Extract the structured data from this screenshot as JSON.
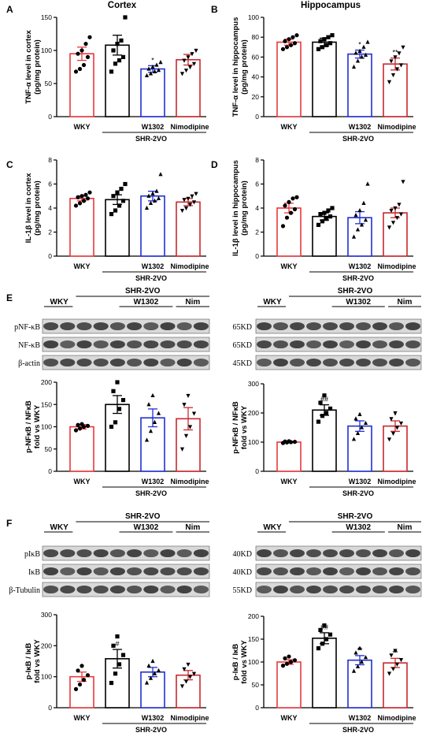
{
  "colors": {
    "wky": "#e8383d",
    "shr": "#000000",
    "w1302": "#1f2fd6",
    "nim": "#c8282d"
  },
  "panels": {
    "A": {
      "letter": "A",
      "title": "Cortex"
    },
    "B": {
      "letter": "B",
      "title": "Hippocampus"
    },
    "C": {
      "letter": "C"
    },
    "D": {
      "letter": "D"
    },
    "E": {
      "letter": "E"
    },
    "F": {
      "letter": "F"
    }
  },
  "chart_data": [
    {
      "id": "A",
      "type": "bar",
      "categories": [
        "WKY",
        "",
        "W1302",
        "Nimodipine"
      ],
      "group_label": "SHR-2VO",
      "ylabel": "TNF-α level in cortex",
      "yunit": "(pg/mg protein)",
      "ylim": [
        0,
        150
      ],
      "yticks": [
        0,
        50,
        100,
        150
      ],
      "values": [
        95,
        108,
        72,
        86
      ],
      "errors": [
        10,
        15,
        5,
        8
      ],
      "significance": [
        "",
        "",
        "*",
        ""
      ],
      "points": [
        [
          68,
          72,
          78,
          90,
          95,
          100,
          110,
          120
        ],
        [
          68,
          80,
          85,
          90,
          100,
          110,
          115,
          150
        ],
        [
          62,
          65,
          68,
          70,
          72,
          75,
          78,
          82
        ],
        [
          65,
          70,
          75,
          80,
          85,
          90,
          95,
          100
        ]
      ]
    },
    {
      "id": "B",
      "type": "bar",
      "categories": [
        "WKY",
        "",
        "W1302",
        "Nimodipine"
      ],
      "group_label": "SHR-2VO",
      "ylabel": "TNF-α level in hippocampus",
      "yunit": "(pg/mg protein)",
      "ylim": [
        0,
        100
      ],
      "yticks": [
        0,
        20,
        40,
        60,
        80,
        100
      ],
      "values": [
        75,
        75,
        63,
        53
      ],
      "errors": [
        3,
        4,
        4,
        6
      ],
      "significance": [
        "",
        "",
        "*",
        "**"
      ],
      "points": [
        [
          68,
          70,
          72,
          74,
          76,
          78,
          80,
          82
        ],
        [
          68,
          70,
          72,
          74,
          76,
          78,
          80,
          82
        ],
        [
          50,
          56,
          60,
          62,
          64,
          66,
          70,
          75
        ],
        [
          35,
          42,
          48,
          52,
          56,
          60,
          64,
          70
        ]
      ]
    },
    {
      "id": "C",
      "type": "bar",
      "categories": [
        "WKY",
        "",
        "W1302",
        "Nimodipine"
      ],
      "group_label": "SHR-2VO",
      "ylabel": "IL-1β level in cortex",
      "yunit": "(pg/mg protein)",
      "ylim": [
        0,
        8
      ],
      "yticks": [
        0,
        2,
        4,
        6,
        8
      ],
      "values": [
        4.8,
        4.7,
        5.0,
        4.5
      ],
      "errors": [
        0.2,
        0.4,
        0.4,
        0.3
      ],
      "significance": [
        "",
        "",
        "",
        ""
      ],
      "points": [
        [
          4.2,
          4.4,
          4.6,
          4.8,
          4.9,
          5.0,
          5.1,
          5.3
        ],
        [
          3.5,
          3.8,
          4.2,
          4.6,
          5.0,
          5.3,
          5.6,
          6.0
        ],
        [
          4.0,
          4.4,
          4.6,
          4.8,
          5.0,
          5.2,
          5.4,
          6.8
        ],
        [
          3.8,
          4.0,
          4.3,
          4.5,
          4.7,
          4.8,
          5.0,
          5.2
        ]
      ]
    },
    {
      "id": "D",
      "type": "bar",
      "categories": [
        "WKY",
        "",
        "W1302",
        "Nimodipine"
      ],
      "group_label": "SHR-2VO",
      "ylabel": "IL-1β level in hippocampus",
      "yunit": "(pg/mg protein)",
      "ylim": [
        0,
        8
      ],
      "yticks": [
        0,
        2,
        4,
        6,
        8
      ],
      "values": [
        4.0,
        3.3,
        3.2,
        3.6
      ],
      "errors": [
        0.4,
        0.3,
        0.5,
        0.4
      ],
      "significance": [
        "",
        "",
        "",
        ""
      ],
      "points": [
        [
          2.5,
          3.2,
          3.6,
          3.9,
          4.2,
          4.5,
          4.8,
          4.9
        ],
        [
          2.6,
          2.9,
          3.1,
          3.3,
          3.5,
          3.6,
          3.8,
          4.0
        ],
        [
          1.6,
          2.2,
          2.6,
          3.0,
          3.4,
          3.8,
          4.4,
          6.0
        ],
        [
          2.4,
          2.8,
          3.2,
          3.5,
          3.8,
          4.0,
          4.3,
          6.2
        ]
      ]
    },
    {
      "id": "E1",
      "type": "bar",
      "categories": [
        "WKY",
        "",
        "W1302",
        "Nimodipine"
      ],
      "group_label": "SHR-2VO",
      "ylabel": "p-NFκB / NFκB",
      "yunit": "fold vs WKY",
      "ylim": [
        0,
        200
      ],
      "yticks": [
        0,
        50,
        100,
        150,
        200
      ],
      "values": [
        100,
        150,
        120,
        118
      ],
      "errors": [
        5,
        20,
        20,
        25
      ],
      "significance": [
        "",
        "",
        "",
        ""
      ],
      "points": [
        [
          92,
          96,
          100,
          102,
          104,
          106
        ],
        [
          100,
          110,
          140,
          160,
          180,
          200
        ],
        [
          70,
          90,
          110,
          130,
          150,
          170
        ],
        [
          50,
          80,
          100,
          130,
          150,
          170
        ]
      ]
    },
    {
      "id": "E2",
      "type": "bar",
      "categories": [
        "WKY",
        "",
        "W1302",
        "Nimodipine"
      ],
      "group_label": "SHR-2VO",
      "ylabel": "p-NFκB / NFκB",
      "yunit": "fold vs WKY",
      "ylim": [
        0,
        300
      ],
      "yticks": [
        0,
        100,
        200,
        300
      ],
      "values": [
        100,
        210,
        155,
        155
      ],
      "errors": [
        2,
        18,
        18,
        18
      ],
      "significance": [
        "",
        "##",
        "*",
        "*"
      ],
      "points": [
        [
          97,
          99,
          100,
          101,
          102,
          103
        ],
        [
          170,
          190,
          200,
          215,
          235,
          260
        ],
        [
          110,
          130,
          150,
          165,
          180,
          195
        ],
        [
          110,
          130,
          150,
          165,
          180,
          200
        ]
      ]
    },
    {
      "id": "F1",
      "type": "bar",
      "categories": [
        "WKY",
        "",
        "W1302",
        "Nimodipine"
      ],
      "group_label": "SHR-2VO",
      "ylabel": "p-IκB / IκB",
      "yunit": "fold vs WKY",
      "ylim": [
        0,
        300
      ],
      "yticks": [
        0,
        100,
        200,
        300
      ],
      "values": [
        100,
        158,
        115,
        105
      ],
      "errors": [
        15,
        30,
        15,
        15
      ],
      "significance": [
        "",
        "#",
        "",
        ""
      ],
      "points": [
        [
          60,
          75,
          90,
          105,
          120,
          135
        ],
        [
          80,
          110,
          140,
          170,
          200,
          230
        ],
        [
          80,
          95,
          110,
          120,
          135,
          150
        ],
        [
          70,
          85,
          100,
          110,
          125,
          140
        ]
      ]
    },
    {
      "id": "F2",
      "type": "bar",
      "categories": [
        "WKY",
        "",
        "W1302",
        "Nimodipine"
      ],
      "group_label": "SHR-2VO",
      "ylabel": "p-IκB / IκB",
      "yunit": "fold vs WKY",
      "ylim": [
        0,
        200
      ],
      "yticks": [
        0,
        50,
        100,
        150,
        200
      ],
      "values": [
        100,
        152,
        104,
        98
      ],
      "errors": [
        5,
        12,
        10,
        10
      ],
      "significance": [
        "",
        "##",
        "**",
        "**"
      ],
      "points": [
        [
          92,
          96,
          100,
          104,
          108,
          112
        ],
        [
          130,
          140,
          150,
          160,
          170,
          180
        ],
        [
          80,
          90,
          100,
          110,
          120,
          130
        ],
        [
          75,
          85,
          95,
          105,
          115,
          125
        ]
      ]
    }
  ],
  "blots": {
    "E_left": {
      "header_top": "SHR-2VO",
      "header_wky": "WKY",
      "header_w1302": "W1302",
      "header_nim": "Nim",
      "rows": [
        "pNF-κB",
        "NF-κB",
        "β-actin"
      ]
    },
    "E_right": {
      "header_top": "SHR-2VO",
      "header_wky": "WKY",
      "header_w1302": "W1302",
      "header_nim": "Nim",
      "rows": [
        "65KD",
        "65KD",
        "45KD"
      ]
    },
    "F_left": {
      "header_top": "SHR-2VO",
      "header_wky": "WKY",
      "header_w1302": "W1302",
      "header_nim": "Nim",
      "rows": [
        "pIκB",
        "IκB",
        "β-Tubulin"
      ]
    },
    "F_right": {
      "header_top": "SHR-2VO",
      "header_wky": "WKY",
      "header_w1302": "W1302",
      "header_nim": "Nim",
      "rows": [
        "40KD",
        "40KD",
        "55KD"
      ]
    }
  }
}
